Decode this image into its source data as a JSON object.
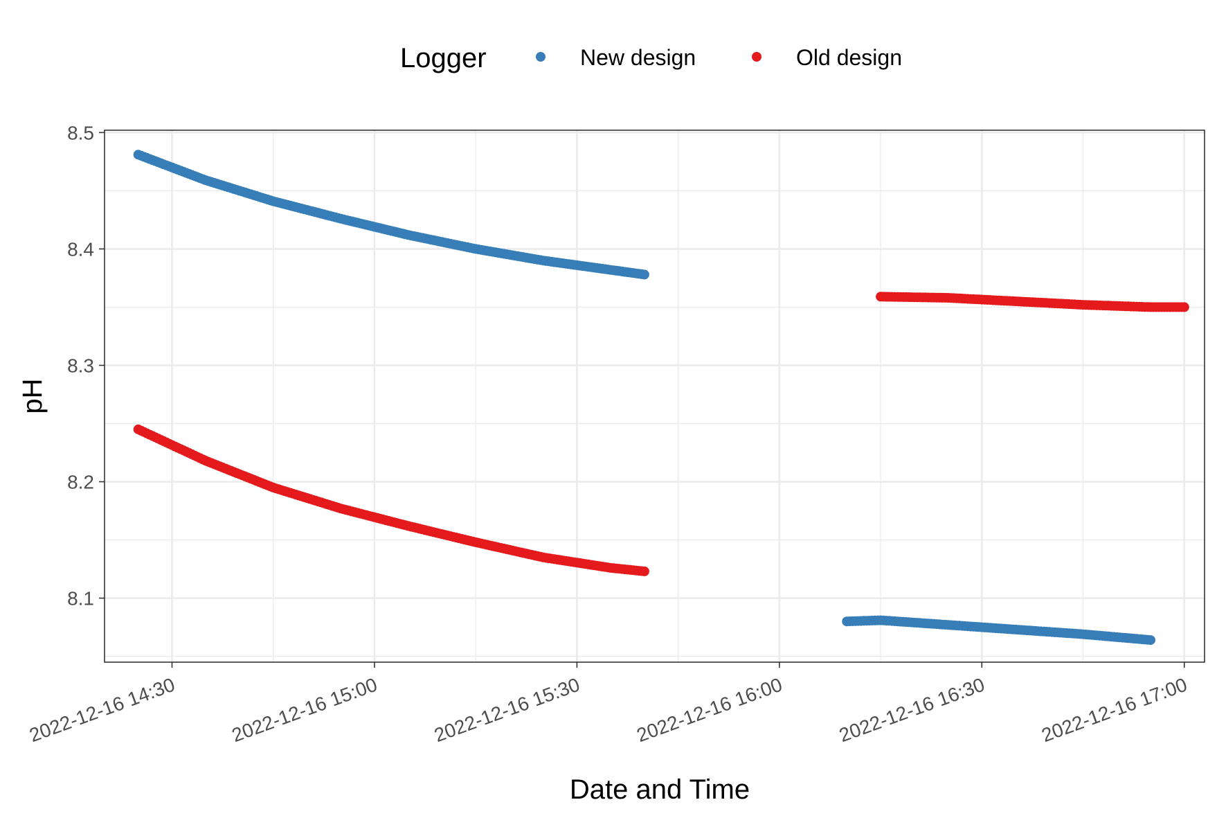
{
  "chart_data": {
    "type": "scatter",
    "xlabel": "Date and Time",
    "ylabel": "pH",
    "x_axis_type": "datetime",
    "xlim": [
      "2022-12-16 14:20",
      "2022-12-16 17:03"
    ],
    "ylim": [
      8.045,
      8.502
    ],
    "x_ticks": [
      "2022-12-16 14:30",
      "2022-12-16 15:00",
      "2022-12-16 15:30",
      "2022-12-16 16:00",
      "2022-12-16 16:30",
      "2022-12-16 17:00"
    ],
    "y_ticks": [
      8.1,
      8.2,
      8.3,
      8.4,
      8.5
    ],
    "y_tick_labels": [
      "8.1",
      "8.2",
      "8.3",
      "8.4",
      "8.5"
    ],
    "grid": true,
    "legend": {
      "title": "Logger",
      "position": "top"
    },
    "series": [
      {
        "name": "New design",
        "color": "#377eb8",
        "segments": [
          {
            "points": [
              [
                "2022-12-16 14:25",
                8.481
              ],
              [
                "2022-12-16 14:35",
                8.459
              ],
              [
                "2022-12-16 14:45",
                8.441
              ],
              [
                "2022-12-16 14:55",
                8.426
              ],
              [
                "2022-12-16 15:05",
                8.412
              ],
              [
                "2022-12-16 15:15",
                8.4
              ],
              [
                "2022-12-16 15:25",
                8.39
              ],
              [
                "2022-12-16 15:35",
                8.382
              ],
              [
                "2022-12-16 15:40",
                8.378
              ]
            ]
          },
          {
            "points": [
              [
                "2022-12-16 16:10",
                8.08
              ],
              [
                "2022-12-16 16:15",
                8.081
              ],
              [
                "2022-12-16 16:25",
                8.077
              ],
              [
                "2022-12-16 16:35",
                8.073
              ],
              [
                "2022-12-16 16:45",
                8.069
              ],
              [
                "2022-12-16 16:55",
                8.064
              ]
            ]
          }
        ]
      },
      {
        "name": "Old design",
        "color": "#e41a1c",
        "segments": [
          {
            "points": [
              [
                "2022-12-16 14:25",
                8.245
              ],
              [
                "2022-12-16 14:35",
                8.218
              ],
              [
                "2022-12-16 14:45",
                8.195
              ],
              [
                "2022-12-16 14:55",
                8.177
              ],
              [
                "2022-12-16 15:05",
                8.162
              ],
              [
                "2022-12-16 15:15",
                8.148
              ],
              [
                "2022-12-16 15:25",
                8.135
              ],
              [
                "2022-12-16 15:35",
                8.126
              ],
              [
                "2022-12-16 15:40",
                8.123
              ]
            ]
          },
          {
            "points": [
              [
                "2022-12-16 16:15",
                8.359
              ],
              [
                "2022-12-16 16:25",
                8.358
              ],
              [
                "2022-12-16 16:35",
                8.355
              ],
              [
                "2022-12-16 16:45",
                8.352
              ],
              [
                "2022-12-16 16:55",
                8.35
              ],
              [
                "2022-12-16 17:00",
                8.35
              ]
            ]
          }
        ]
      }
    ]
  }
}
